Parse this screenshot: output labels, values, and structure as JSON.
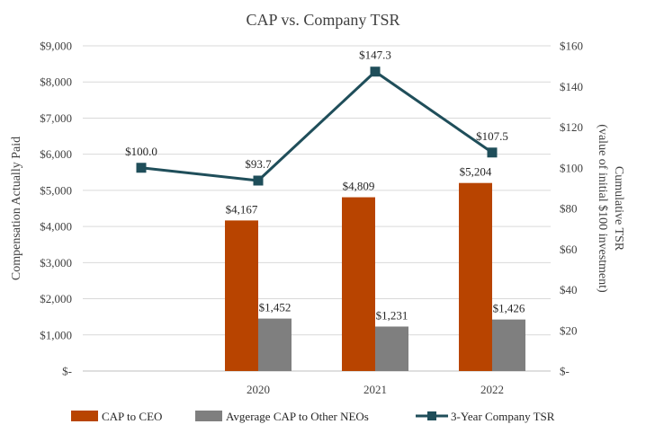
{
  "chart_data": {
    "type": "bar+line",
    "title": "CAP vs. Company TSR",
    "categories": [
      "",
      "2020",
      "2021",
      "2022"
    ],
    "series": [
      {
        "name": "CAP to CEO",
        "kind": "bar",
        "axis": "left",
        "color": "#B84400",
        "values": [
          null,
          4167,
          4809,
          5204
        ],
        "labels": [
          "",
          "$4,167",
          "$4,809",
          "$5,204"
        ]
      },
      {
        "name": "Avgerage CAP to Other NEOs",
        "kind": "bar",
        "axis": "left",
        "color": "#7F7F7F",
        "values": [
          null,
          1452,
          1231,
          1426
        ],
        "labels": [
          "",
          "$1,452",
          "$1,231",
          "$1,426"
        ]
      },
      {
        "name": "3-Year Company TSR",
        "kind": "line",
        "axis": "right",
        "color": "#1F4E5A",
        "values": [
          100.0,
          93.7,
          147.3,
          107.5
        ],
        "labels": [
          "$100.0",
          "$93.7",
          "$147.3",
          "$107.5"
        ]
      }
    ],
    "y_left": {
      "label": "Compensation Actually Paid",
      "min": 0,
      "max": 9000,
      "step": 1000,
      "tick_labels": [
        "$-",
        "$1,000",
        "$2,000",
        "$3,000",
        "$4,000",
        "$5,000",
        "$6,000",
        "$7,000",
        "$8,000",
        "$9,000"
      ]
    },
    "y_right": {
      "label_line1": "Cumulative TSR",
      "label_line2": "(value of initial $100 investment)",
      "min": 0,
      "max": 160,
      "step": 20,
      "tick_labels": [
        "$-",
        "$20",
        "$40",
        "$60",
        "$80",
        "$100",
        "$120",
        "$140",
        "$160"
      ]
    },
    "gridlines": true,
    "legend_position": "bottom"
  }
}
